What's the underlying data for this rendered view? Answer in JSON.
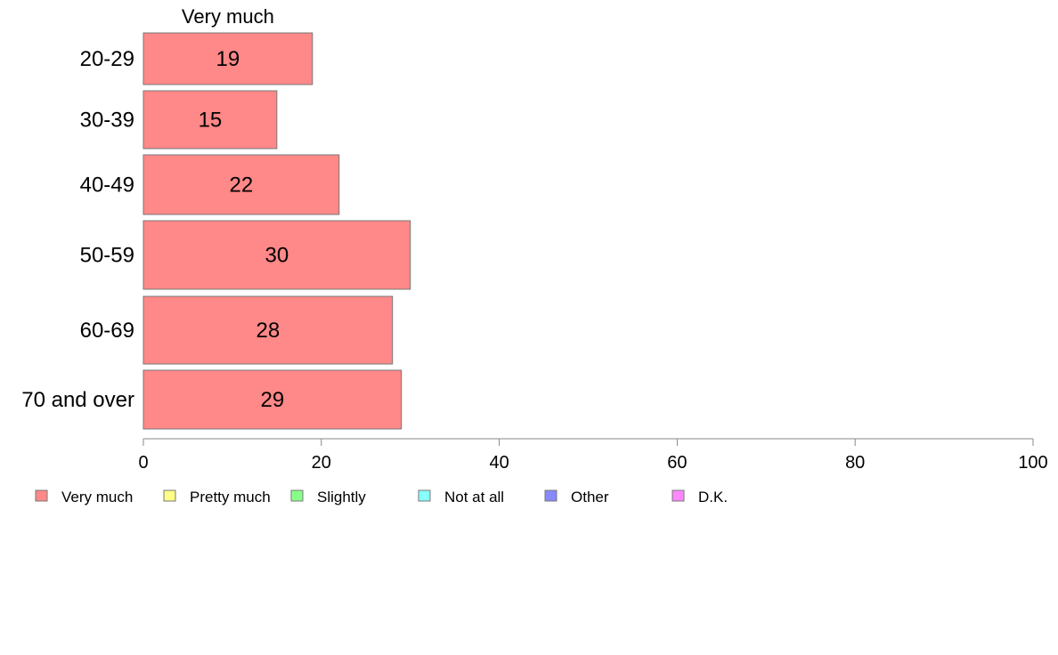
{
  "chart_data": {
    "type": "bar",
    "orientation": "horizontal",
    "stacked": true,
    "categories": [
      "20-29",
      "30-39",
      "40-49",
      "50-59",
      "60-69",
      "70 and over"
    ],
    "series": [
      {
        "name": "Very much",
        "color": "#ff8888",
        "values": [
          19,
          15,
          22,
          30,
          28,
          29
        ]
      }
    ],
    "series_header": "Very much",
    "xlim": [
      0,
      100
    ],
    "xticks": [
      0,
      20,
      40,
      60,
      80,
      100
    ],
    "grid": false,
    "legend": {
      "position": "bottom",
      "entries": [
        {
          "label": "Very much",
          "color": "#ff8888"
        },
        {
          "label": "Pretty much",
          "color": "#ffff88"
        },
        {
          "label": "Slightly",
          "color": "#88ff88"
        },
        {
          "label": "Not at all",
          "color": "#88ffff"
        },
        {
          "label": "Other",
          "color": "#8888ff"
        },
        {
          "label": "D.K.",
          "color": "#ff88ff"
        }
      ]
    }
  }
}
